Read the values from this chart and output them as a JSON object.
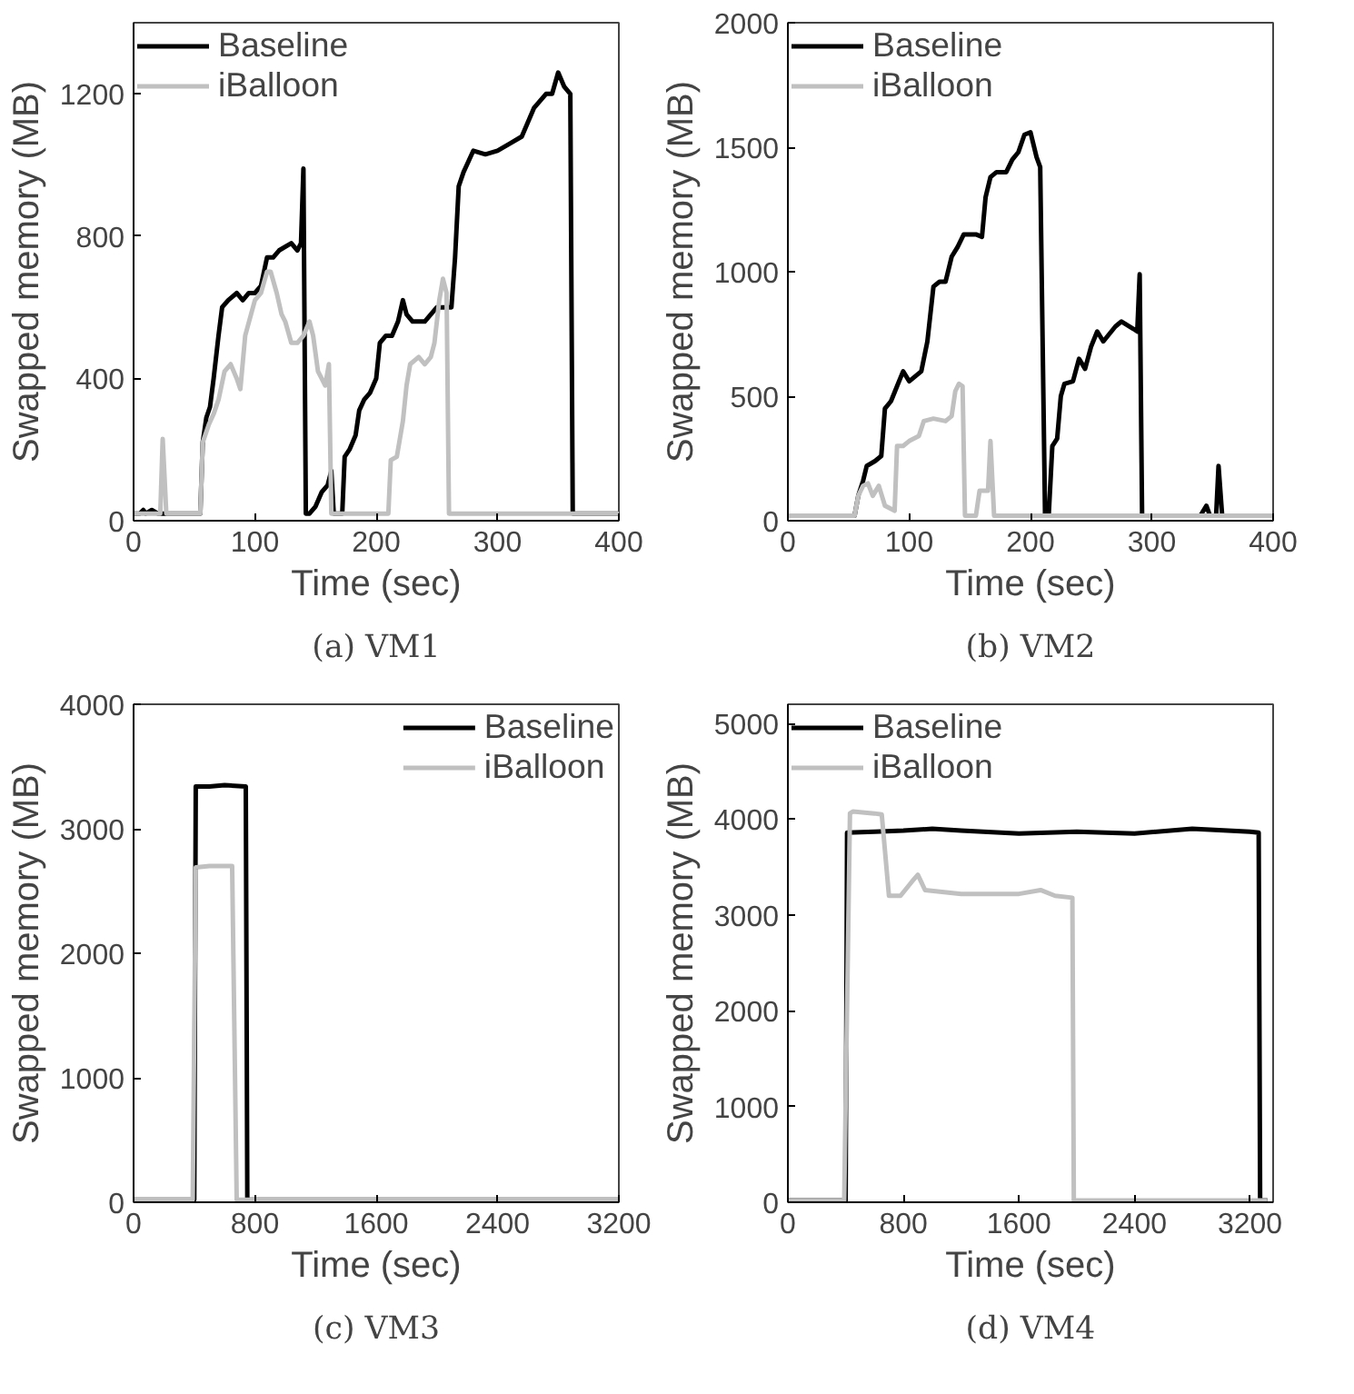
{
  "chart_data": [
    {
      "type": "line",
      "title": "(a) VM1",
      "xlabel": "Time (sec)",
      "ylabel": "Swapped memory (MB)",
      "xlim": [
        0,
        400
      ],
      "xticks": [
        0,
        100,
        200,
        300,
        400
      ],
      "ylim": [
        0,
        1400
      ],
      "yticks": [
        0,
        400,
        800,
        1200
      ],
      "legend": "top left",
      "grid": false,
      "series": [
        {
          "name": "Baseline",
          "color": "#000000",
          "x": [
            0,
            5,
            8,
            10,
            15,
            20,
            25,
            55,
            57,
            60,
            63,
            66,
            70,
            73,
            78,
            85,
            90,
            95,
            100,
            105,
            110,
            115,
            120,
            130,
            135,
            138,
            140,
            142,
            145,
            150,
            155,
            160,
            163,
            165,
            170,
            172,
            174,
            178,
            183,
            186,
            190,
            195,
            200,
            203,
            208,
            213,
            218,
            222,
            225,
            230,
            240,
            250,
            258,
            262,
            265,
            268,
            272,
            280,
            290,
            300,
            310,
            320,
            330,
            340,
            345,
            350,
            355,
            360,
            362,
            400
          ],
          "values": [
            20,
            20,
            30,
            20,
            30,
            20,
            20,
            20,
            220,
            290,
            320,
            400,
            520,
            600,
            620,
            640,
            620,
            640,
            640,
            660,
            740,
            740,
            760,
            780,
            760,
            780,
            990,
            20,
            20,
            40,
            80,
            100,
            140,
            20,
            20,
            20,
            180,
            200,
            240,
            310,
            340,
            360,
            400,
            500,
            520,
            520,
            560,
            620,
            580,
            560,
            560,
            600,
            600,
            600,
            740,
            940,
            980,
            1040,
            1030,
            1040,
            1060,
            1080,
            1160,
            1200,
            1200,
            1260,
            1220,
            1200,
            20,
            20
          ]
        },
        {
          "name": "iBalloon",
          "color": "#c0c0c0",
          "x": [
            0,
            22,
            24,
            27,
            55,
            57,
            62,
            66,
            70,
            75,
            80,
            85,
            88,
            92,
            100,
            105,
            110,
            113,
            118,
            122,
            125,
            130,
            135,
            140,
            145,
            148,
            152,
            155,
            158,
            161,
            163,
            210,
            212,
            217,
            222,
            225,
            228,
            235,
            240,
            245,
            248,
            252,
            255,
            258,
            260,
            400
          ],
          "values": [
            20,
            20,
            230,
            20,
            20,
            220,
            270,
            300,
            340,
            420,
            440,
            400,
            370,
            520,
            620,
            640,
            700,
            700,
            640,
            580,
            560,
            500,
            500,
            520,
            560,
            520,
            420,
            400,
            380,
            440,
            20,
            20,
            170,
            180,
            280,
            380,
            440,
            460,
            440,
            460,
            500,
            620,
            680,
            640,
            20,
            20
          ]
        }
      ]
    },
    {
      "type": "line",
      "title": "(b) VM2",
      "xlabel": "Time (sec)",
      "ylabel": "Swapped memory (MB)",
      "xlim": [
        0,
        400
      ],
      "xticks": [
        0,
        100,
        200,
        300,
        400
      ],
      "ylim": [
        0,
        2000
      ],
      "yticks": [
        0,
        500,
        1000,
        1500,
        2000
      ],
      "legend": "top left",
      "grid": false,
      "series": [
        {
          "name": "Baseline",
          "color": "#000000",
          "x": [
            0,
            55,
            58,
            62,
            65,
            72,
            77,
            80,
            85,
            90,
            95,
            100,
            105,
            110,
            115,
            120,
            125,
            130,
            135,
            140,
            145,
            155,
            160,
            163,
            167,
            172,
            180,
            185,
            190,
            195,
            200,
            205,
            208,
            212,
            215,
            218,
            222,
            225,
            228,
            235,
            240,
            245,
            250,
            255,
            260,
            270,
            275,
            285,
            288,
            290,
            292,
            340,
            345,
            348,
            353,
            355,
            358,
            400
          ],
          "values": [
            20,
            20,
            100,
            160,
            220,
            240,
            260,
            450,
            480,
            540,
            600,
            560,
            580,
            600,
            720,
            940,
            960,
            960,
            1060,
            1100,
            1150,
            1150,
            1140,
            1300,
            1380,
            1400,
            1400,
            1450,
            1480,
            1550,
            1560,
            1460,
            1420,
            20,
            20,
            300,
            330,
            500,
            550,
            560,
            650,
            610,
            700,
            760,
            720,
            780,
            800,
            770,
            760,
            990,
            20,
            20,
            60,
            20,
            20,
            220,
            20,
            20
          ]
        },
        {
          "name": "iBalloon",
          "color": "#c0c0c0",
          "x": [
            0,
            55,
            58,
            62,
            66,
            70,
            75,
            80,
            88,
            90,
            95,
            100,
            108,
            112,
            120,
            130,
            135,
            138,
            141,
            144,
            146,
            155,
            158,
            165,
            167,
            170,
            400
          ],
          "values": [
            20,
            20,
            100,
            140,
            150,
            100,
            140,
            60,
            40,
            300,
            300,
            320,
            340,
            400,
            410,
            400,
            420,
            520,
            550,
            540,
            20,
            20,
            120,
            120,
            320,
            20,
            20
          ]
        }
      ]
    },
    {
      "type": "line",
      "title": "(c) VM3",
      "xlabel": "Time (sec)",
      "ylabel": "Swapped memory (MB)",
      "xlim": [
        0,
        3200
      ],
      "xticks": [
        0,
        800,
        1600,
        2400,
        3200
      ],
      "ylim": [
        0,
        4000
      ],
      "yticks": [
        0,
        1000,
        2000,
        3000,
        4000
      ],
      "legend": "top right",
      "grid": false,
      "series": [
        {
          "name": "Baseline",
          "color": "#000000",
          "x": [
            0,
            400,
            410,
            500,
            600,
            740,
            750,
            3200
          ],
          "values": [
            20,
            20,
            3340,
            3340,
            3350,
            3340,
            20,
            20
          ]
        },
        {
          "name": "iBalloon",
          "color": "#c0c0c0",
          "x": [
            0,
            390,
            410,
            500,
            650,
            680,
            3200
          ],
          "values": [
            20,
            20,
            2690,
            2700,
            2700,
            20,
            20
          ]
        }
      ]
    },
    {
      "type": "line",
      "title": "(d) VM4",
      "xlabel": "Time (sec)",
      "ylabel": "Swapped memory (MB)",
      "xlim": [
        0,
        3360
      ],
      "xticks": [
        0,
        800,
        1600,
        2400,
        3200
      ],
      "ylim": [
        0,
        5200
      ],
      "yticks": [
        0,
        1000,
        2000,
        3000,
        4000,
        5000
      ],
      "legend": "top left",
      "grid": false,
      "series": [
        {
          "name": "Baseline",
          "color": "#000000",
          "x": [
            0,
            400,
            410,
            600,
            800,
            1000,
            1200,
            1600,
            2000,
            2400,
            2800,
            3200,
            3260,
            3270,
            3320
          ],
          "values": [
            20,
            20,
            3860,
            3870,
            3880,
            3900,
            3880,
            3850,
            3870,
            3850,
            3900,
            3870,
            3860,
            20,
            20
          ]
        },
        {
          "name": "iBalloon",
          "color": "#c0c0c0",
          "x": [
            0,
            390,
            430,
            450,
            600,
            650,
            700,
            780,
            860,
            900,
            950,
            1200,
            1600,
            1750,
            1850,
            1970,
            1980,
            3320
          ],
          "values": [
            20,
            20,
            4060,
            4080,
            4060,
            4050,
            3200,
            3200,
            3350,
            3420,
            3260,
            3220,
            3220,
            3260,
            3200,
            3180,
            20,
            20
          ]
        }
      ]
    }
  ]
}
